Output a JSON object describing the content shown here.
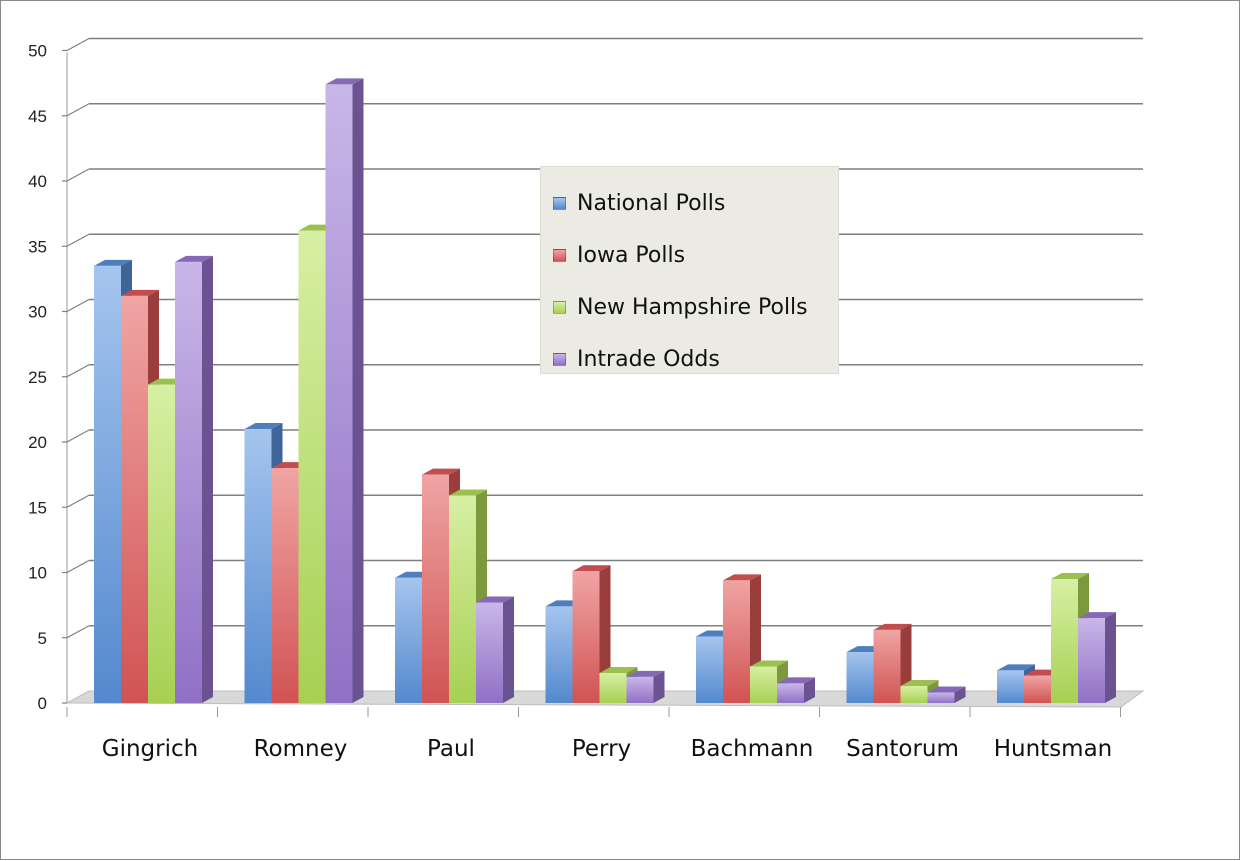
{
  "chart_data": {
    "type": "bar",
    "categories": [
      "Gingrich",
      "Romney",
      "Paul",
      "Perry",
      "Bachmann",
      "Santorum",
      "Huntsman"
    ],
    "series": [
      {
        "name": "National Polls",
        "color": "#5b95e0",
        "values": [
          33.5,
          21.0,
          9.6,
          7.4,
          5.1,
          3.9,
          2.5
        ]
      },
      {
        "name": "Iowa Polls",
        "color": "#e35a5a",
        "values": [
          31.2,
          18.0,
          17.5,
          10.1,
          9.4,
          5.6,
          2.1
        ]
      },
      {
        "name": "New Hampshire Polls",
        "color": "#b6e25a",
        "values": [
          24.4,
          36.2,
          15.9,
          2.3,
          2.8,
          1.3,
          9.5
        ]
      },
      {
        "name": "Intrade Odds",
        "color": "#9d7ad6",
        "values": [
          33.8,
          47.4,
          7.7,
          2.0,
          1.5,
          0.8,
          6.5
        ]
      }
    ],
    "ylim": [
      0,
      50
    ],
    "yticks": [
      0,
      5,
      10,
      15,
      20,
      25,
      30,
      35,
      40,
      45,
      50
    ],
    "grid": true,
    "legend_position": "center-top",
    "style": "3d-clustered-column"
  }
}
